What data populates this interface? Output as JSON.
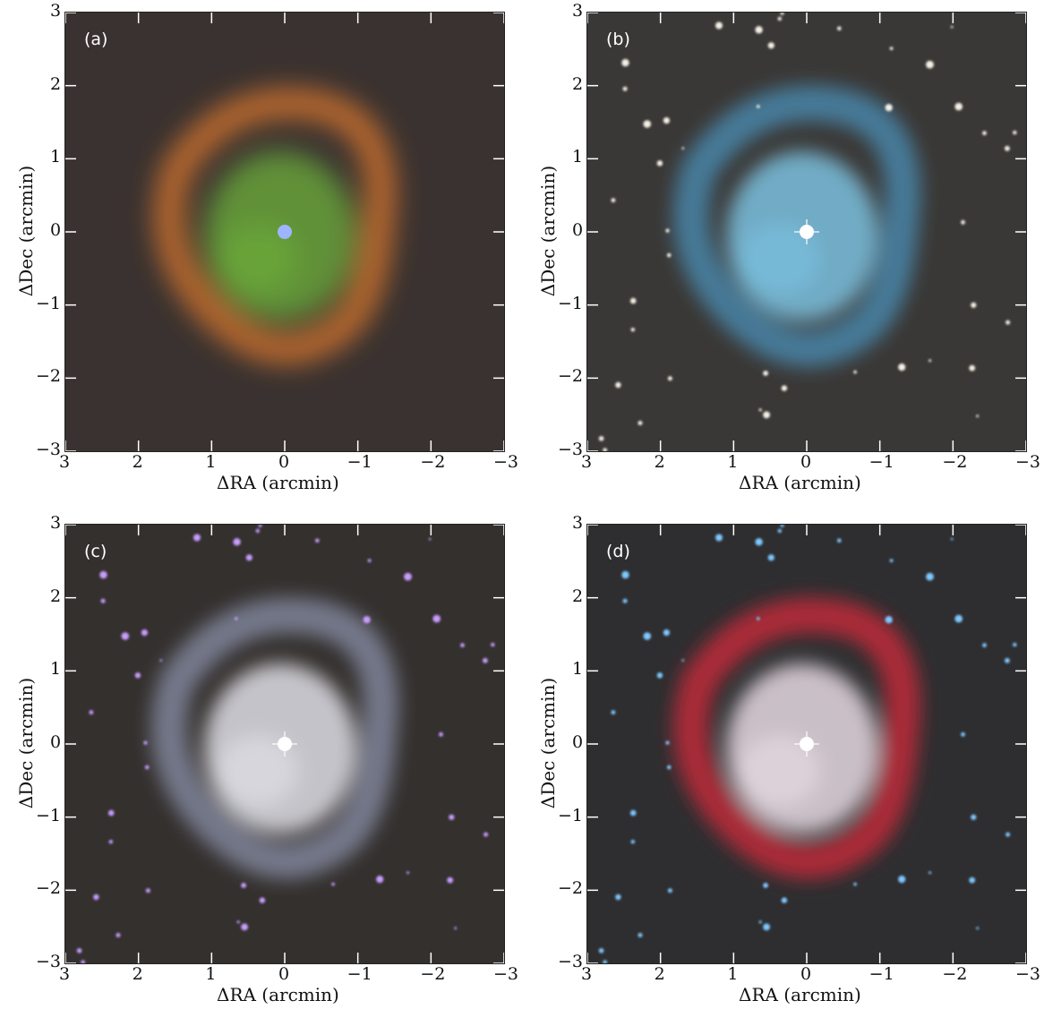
{
  "axes": {
    "xlabel": "ΔRA (arcmin)",
    "ylabel": "ΔDec (arcmin)",
    "x_ticks": [
      "3",
      "2",
      "1",
      "0",
      "−1",
      "−2",
      "−3"
    ],
    "y_ticks": [
      "3",
      "2",
      "1",
      "0",
      "−1",
      "−2",
      "−3"
    ]
  },
  "panels": [
    {
      "tag": "(a)",
      "background": "#3a3230",
      "shell": "#e07a2c",
      "inner": "#6fb83a",
      "core": "#9fb4ff",
      "stars": false
    },
    {
      "tag": "(b)",
      "background": "#3a3836",
      "shell": "#4a90b8",
      "inner": "#7ec8e8",
      "core": "#ffffff",
      "stars": true
    },
    {
      "tag": "(c)",
      "background": "#34302e",
      "shell": "#8a90a8",
      "inner": "#e8e8f0",
      "core": "#ffffff",
      "stars": true
    },
    {
      "tag": "(d)",
      "background": "#2e2e30",
      "shell": "#c02838",
      "inner": "#f0e4ec",
      "core": "#ffffff",
      "stars": true
    }
  ]
}
